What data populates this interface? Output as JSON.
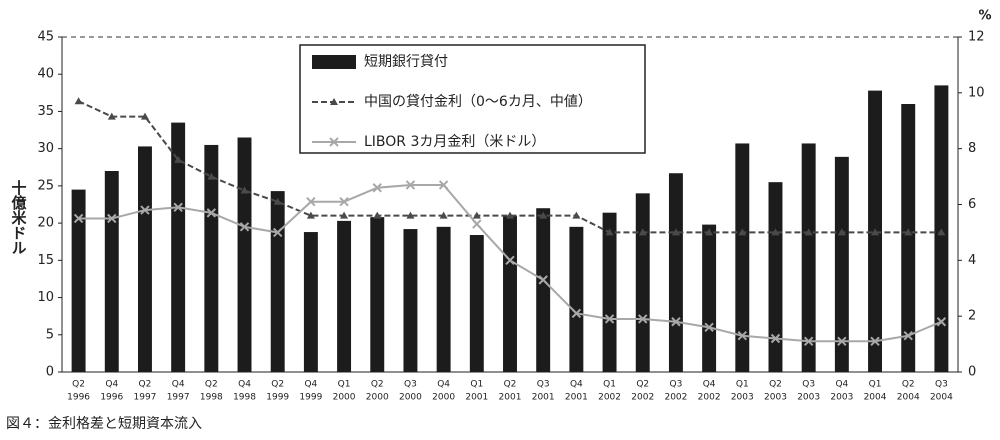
{
  "chart_data": {
    "type": "bar_line",
    "caption": "図４：金利格差と短期資本流入",
    "y_label": "十億米ドル",
    "y2_label": "%",
    "categories": [
      [
        "Q2",
        "1996"
      ],
      [
        "Q4",
        "1996"
      ],
      [
        "Q2",
        "1997"
      ],
      [
        "Q4",
        "1997"
      ],
      [
        "Q2",
        "1998"
      ],
      [
        "Q4",
        "1998"
      ],
      [
        "Q2",
        "1999"
      ],
      [
        "Q4",
        "1999"
      ],
      [
        "Q1",
        "2000"
      ],
      [
        "Q2",
        "2000"
      ],
      [
        "Q3",
        "2000"
      ],
      [
        "Q4",
        "2000"
      ],
      [
        "Q1",
        "2001"
      ],
      [
        "Q2",
        "2001"
      ],
      [
        "Q3",
        "2001"
      ],
      [
        "Q4",
        "2001"
      ],
      [
        "Q1",
        "2002"
      ],
      [
        "Q2",
        "2002"
      ],
      [
        "Q3",
        "2002"
      ],
      [
        "Q4",
        "2002"
      ],
      [
        "Q1",
        "2003"
      ],
      [
        "Q2",
        "2003"
      ],
      [
        "Q3",
        "2003"
      ],
      [
        "Q4",
        "2003"
      ],
      [
        "Q1",
        "2004"
      ],
      [
        "Q2",
        "2004"
      ],
      [
        "Q3",
        "2004"
      ]
    ],
    "series": [
      {
        "name": "短期銀行貸付",
        "type": "bar",
        "color": "#1c1c1c",
        "values": [
          24.5,
          27,
          30.3,
          33.5,
          30.5,
          31.5,
          24.3,
          18.8,
          20.3,
          20.8,
          19.2,
          19.5,
          18.4,
          21,
          22,
          19.5,
          21.4,
          24,
          26.7,
          19.8,
          30.7,
          25.5,
          30.7,
          28.9,
          37.8,
          36,
          38.5
        ]
      },
      {
        "name": "中国の貸付金利（0〜6カ月、中値）",
        "type": "line",
        "axis": "y2",
        "color": "#4a4a4a",
        "dash": true,
        "marker": "triangle",
        "values": [
          9.7,
          9.15,
          9.15,
          7.6,
          7.0,
          6.5,
          6.1,
          5.6,
          5.6,
          5.6,
          5.6,
          5.6,
          5.6,
          5.6,
          5.6,
          5.6,
          5.0,
          5.0,
          5.0,
          5.0,
          5.0,
          5.0,
          5.0,
          5.0,
          5.0,
          5.0,
          5.0
        ]
      },
      {
        "name": "LIBOR 3カ月金利（米ドル）",
        "type": "line",
        "axis": "y2",
        "color": "#a8a8a8",
        "dash": false,
        "marker": "x",
        "values": [
          5.5,
          5.5,
          5.8,
          5.9,
          5.7,
          5.2,
          5.0,
          6.1,
          6.1,
          6.6,
          6.7,
          6.7,
          5.3,
          4.0,
          3.3,
          2.1,
          1.9,
          1.9,
          1.8,
          1.6,
          1.3,
          1.2,
          1.1,
          1.1,
          1.1,
          1.3,
          1.8
        ]
      }
    ],
    "ylim": [
      0,
      45
    ],
    "yticks": [
      0,
      5,
      10,
      15,
      20,
      25,
      30,
      35,
      40,
      45
    ],
    "y2lim": [
      0,
      12
    ],
    "y2ticks": [
      0,
      2,
      4,
      6,
      8,
      10,
      12
    ]
  }
}
